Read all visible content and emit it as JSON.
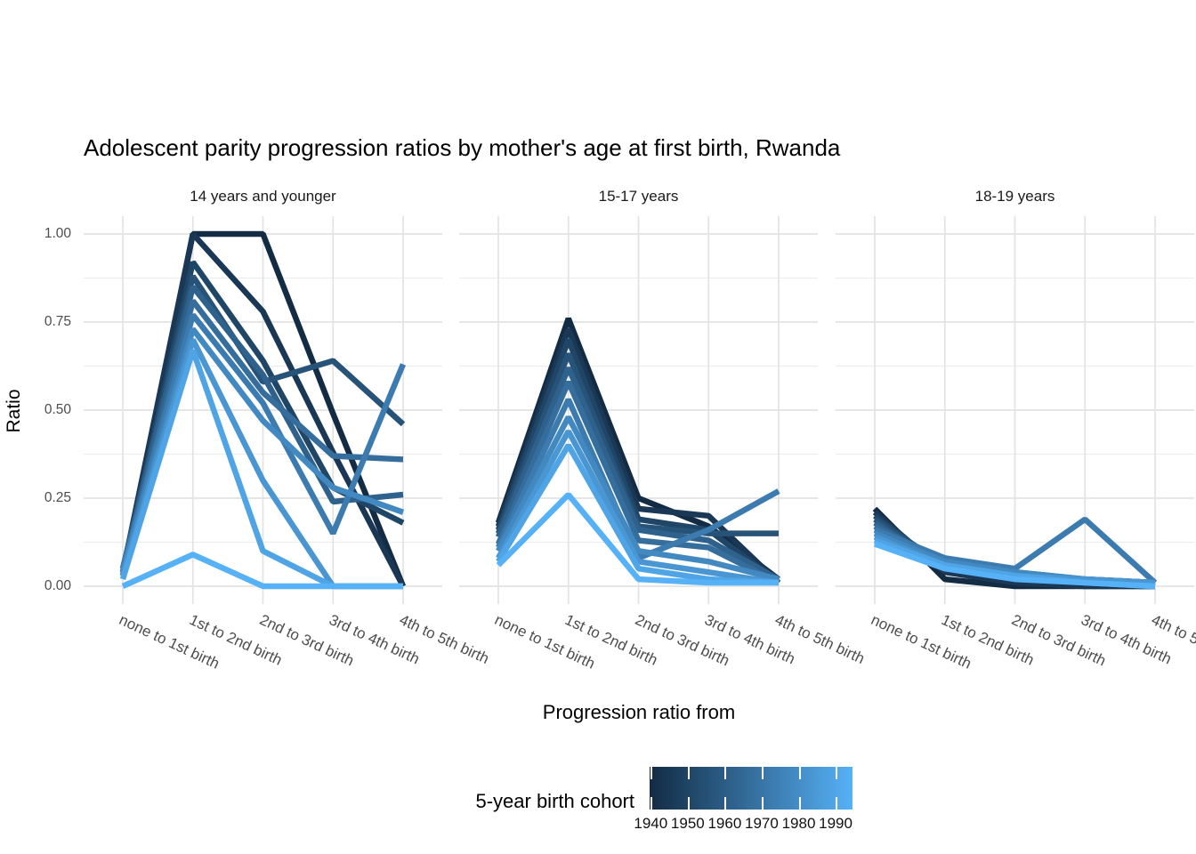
{
  "title": "Adolescent parity progression ratios by mother's age at first birth,  Rwanda",
  "legend": {
    "title": "5-year birth cohort",
    "tick_labels": [
      "1940",
      "1950",
      "1960",
      "1970",
      "1980",
      "1990"
    ]
  },
  "colors": {
    "gradient_low": "#132B43",
    "gradient_high": "#56B1F7",
    "grid_major": "#E3E3E3",
    "grid_minor": "#EDEDED",
    "axis_text": "#4d4d4d"
  },
  "chart_data": {
    "type": "line",
    "title": "Adolescent parity progression ratios by mother's age at first birth,  Rwanda",
    "xlabel": "Progression ratio from",
    "ylabel": "Ratio",
    "y_ticks": [
      "1.00",
      "0.75",
      "0.50",
      "0.25",
      "0.00"
    ],
    "y_tick_values": [
      1.0,
      0.75,
      0.5,
      0.25,
      0.0
    ],
    "ylim": [
      0,
      1
    ],
    "grid": true,
    "legend_position": "bottom",
    "legend_type": "continuous-colorbar",
    "cohorts": [
      "1940",
      "1945",
      "1950",
      "1955",
      "1960",
      "1965",
      "1970",
      "1975",
      "1980",
      "1985",
      "1990"
    ],
    "categories": [
      "none to 1st birth",
      "1st to 2nd birth",
      "2nd to 3rd birth",
      "3rd to 4th birth",
      "4th to 5th birth"
    ],
    "facets": [
      {
        "label": "14 years and younger",
        "series": [
          {
            "name": "1940",
            "values": [
              0.03,
              1.0,
              1.0,
              0.49,
              0.0
            ]
          },
          {
            "name": "1945",
            "values": [
              0.04,
              1.0,
              0.78,
              0.38,
              0.0
            ]
          },
          {
            "name": "1950",
            "values": [
              0.04,
              0.92,
              0.64,
              0.28,
              0.18
            ]
          },
          {
            "name": "1955",
            "values": [
              0.05,
              0.88,
              0.58,
              0.64,
              0.46
            ]
          },
          {
            "name": "1960",
            "values": [
              0.05,
              0.85,
              0.6,
              0.24,
              0.26
            ]
          },
          {
            "name": "1965",
            "values": [
              0.04,
              0.81,
              0.55,
              0.37,
              0.36
            ]
          },
          {
            "name": "1970",
            "values": [
              0.05,
              0.77,
              0.52,
              0.15,
              0.63
            ]
          },
          {
            "name": "1975",
            "values": [
              0.04,
              0.73,
              0.47,
              0.28,
              0.21
            ]
          },
          {
            "name": "1980",
            "values": [
              0.03,
              0.7,
              0.3,
              0.0,
              0.0
            ]
          },
          {
            "name": "1985",
            "values": [
              0.02,
              0.67,
              0.1,
              0.0,
              0.0
            ]
          },
          {
            "name": "1990",
            "values": [
              0.0,
              0.09,
              0.0,
              0.0,
              0.0
            ]
          }
        ]
      },
      {
        "label": "15-17 years",
        "series": [
          {
            "name": "1940",
            "values": [
              0.18,
              0.76,
              0.25,
              0.17,
              0.02
            ]
          },
          {
            "name": "1945",
            "values": [
              0.17,
              0.73,
              0.22,
              0.2,
              0.01
            ]
          },
          {
            "name": "1950",
            "values": [
              0.16,
              0.7,
              0.19,
              0.16,
              0.01
            ]
          },
          {
            "name": "1955",
            "values": [
              0.15,
              0.66,
              0.17,
              0.15,
              0.15
            ]
          },
          {
            "name": "1960",
            "values": [
              0.14,
              0.62,
              0.16,
              0.13,
              0.02
            ]
          },
          {
            "name": "1965",
            "values": [
              0.12,
              0.58,
              0.13,
              0.11,
              0.01
            ]
          },
          {
            "name": "1970",
            "values": [
              0.11,
              0.53,
              0.08,
              0.16,
              0.27
            ]
          },
          {
            "name": "1975",
            "values": [
              0.1,
              0.48,
              0.1,
              0.07,
              0.02
            ]
          },
          {
            "name": "1980",
            "values": [
              0.08,
              0.44,
              0.07,
              0.04,
              0.01
            ]
          },
          {
            "name": "1985",
            "values": [
              0.07,
              0.4,
              0.05,
              0.02,
              0.01
            ]
          },
          {
            "name": "1990",
            "values": [
              0.06,
              0.26,
              0.02,
              0.01,
              0.01
            ]
          }
        ]
      },
      {
        "label": "18-19 years",
        "series": [
          {
            "name": "1940",
            "values": [
              0.22,
              0.02,
              0.0,
              0.0,
              0.0
            ]
          },
          {
            "name": "1945",
            "values": [
              0.21,
              0.04,
              0.01,
              0.0,
              0.0
            ]
          },
          {
            "name": "1950",
            "values": [
              0.2,
              0.05,
              0.02,
              0.01,
              0.0
            ]
          },
          {
            "name": "1955",
            "values": [
              0.19,
              0.06,
              0.03,
              0.01,
              0.0
            ]
          },
          {
            "name": "1960",
            "values": [
              0.18,
              0.06,
              0.03,
              0.02,
              0.01
            ]
          },
          {
            "name": "1965",
            "values": [
              0.17,
              0.07,
              0.04,
              0.02,
              0.01
            ]
          },
          {
            "name": "1970",
            "values": [
              0.16,
              0.08,
              0.05,
              0.19,
              0.01
            ]
          },
          {
            "name": "1975",
            "values": [
              0.15,
              0.07,
              0.04,
              0.02,
              0.01
            ]
          },
          {
            "name": "1980",
            "values": [
              0.14,
              0.06,
              0.03,
              0.02,
              0.01
            ]
          },
          {
            "name": "1985",
            "values": [
              0.13,
              0.06,
              0.03,
              0.01,
              0.0
            ]
          },
          {
            "name": "1990",
            "values": [
              0.12,
              0.05,
              0.02,
              0.01,
              0.0
            ]
          }
        ]
      }
    ]
  }
}
